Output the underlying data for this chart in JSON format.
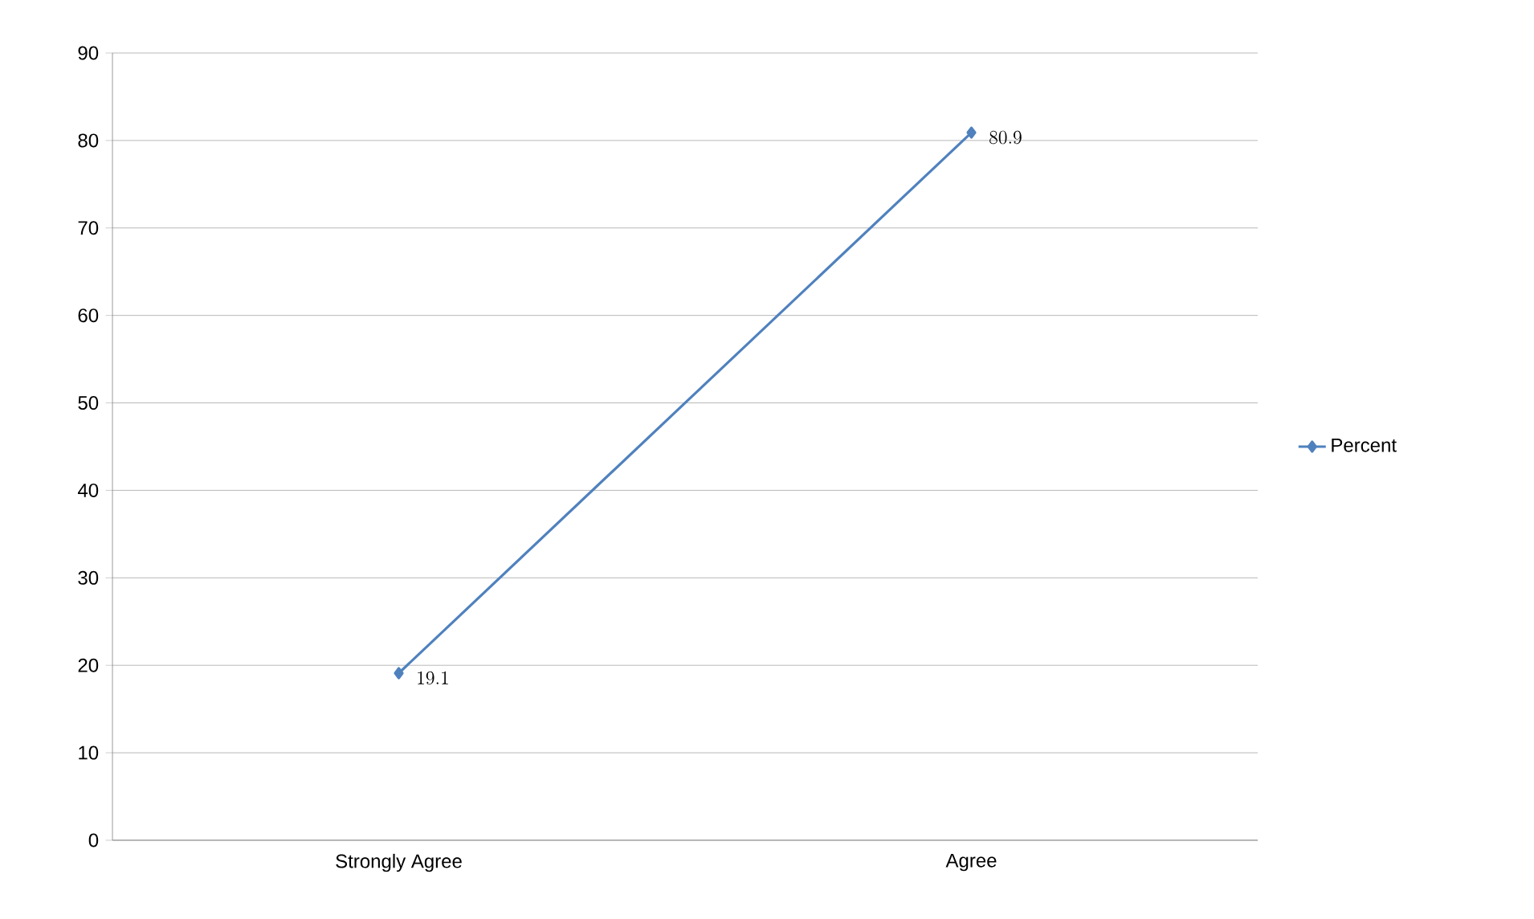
{
  "chart_data": {
    "type": "line",
    "categories": [
      "Strongly Agree",
      "Agree"
    ],
    "series": [
      {
        "name": "Percent",
        "color": "#4f81bd",
        "values": [
          19.1,
          80.9
        ]
      }
    ],
    "ylim": [
      0,
      90
    ],
    "yticks": [
      0,
      10,
      20,
      30,
      40,
      50,
      60,
      70,
      80,
      90
    ],
    "grid": "y",
    "legend": "right",
    "marker": "diamond",
    "data_labels": true
  }
}
